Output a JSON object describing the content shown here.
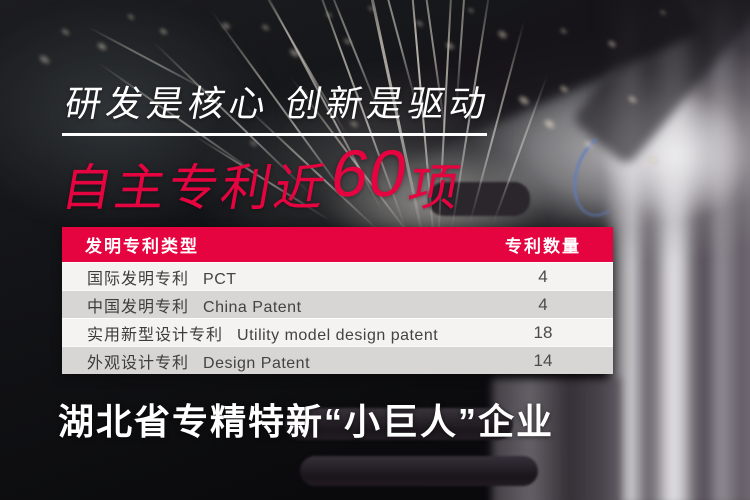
{
  "colors": {
    "accent_red": "#e50440",
    "headline_white": "#ffffff",
    "row_light": "#f4f3f1",
    "row_gray": "#d8d6d4",
    "table_text": "#3d3d3d"
  },
  "hero": {
    "headline": "研发是核心 创新是驱动",
    "patent_line": {
      "prefix": "自主专利近",
      "number": "60",
      "suffix": "项"
    }
  },
  "patent_table": {
    "columns": {
      "type": "发明专利类型",
      "count": "专利数量"
    },
    "rows": [
      {
        "zh": "国际发明专利",
        "en": "PCT",
        "count": "4"
      },
      {
        "zh": "中国发明专利",
        "en": "China Patent",
        "count": "4"
      },
      {
        "zh": "实用新型设计专利",
        "en": "Utility model design patent",
        "count": "18"
      },
      {
        "zh": "外观设计专利",
        "en": "Design Patent",
        "count": "14"
      }
    ]
  },
  "footer": {
    "slogan": "湖北省专精特新“小巨人”企业"
  }
}
